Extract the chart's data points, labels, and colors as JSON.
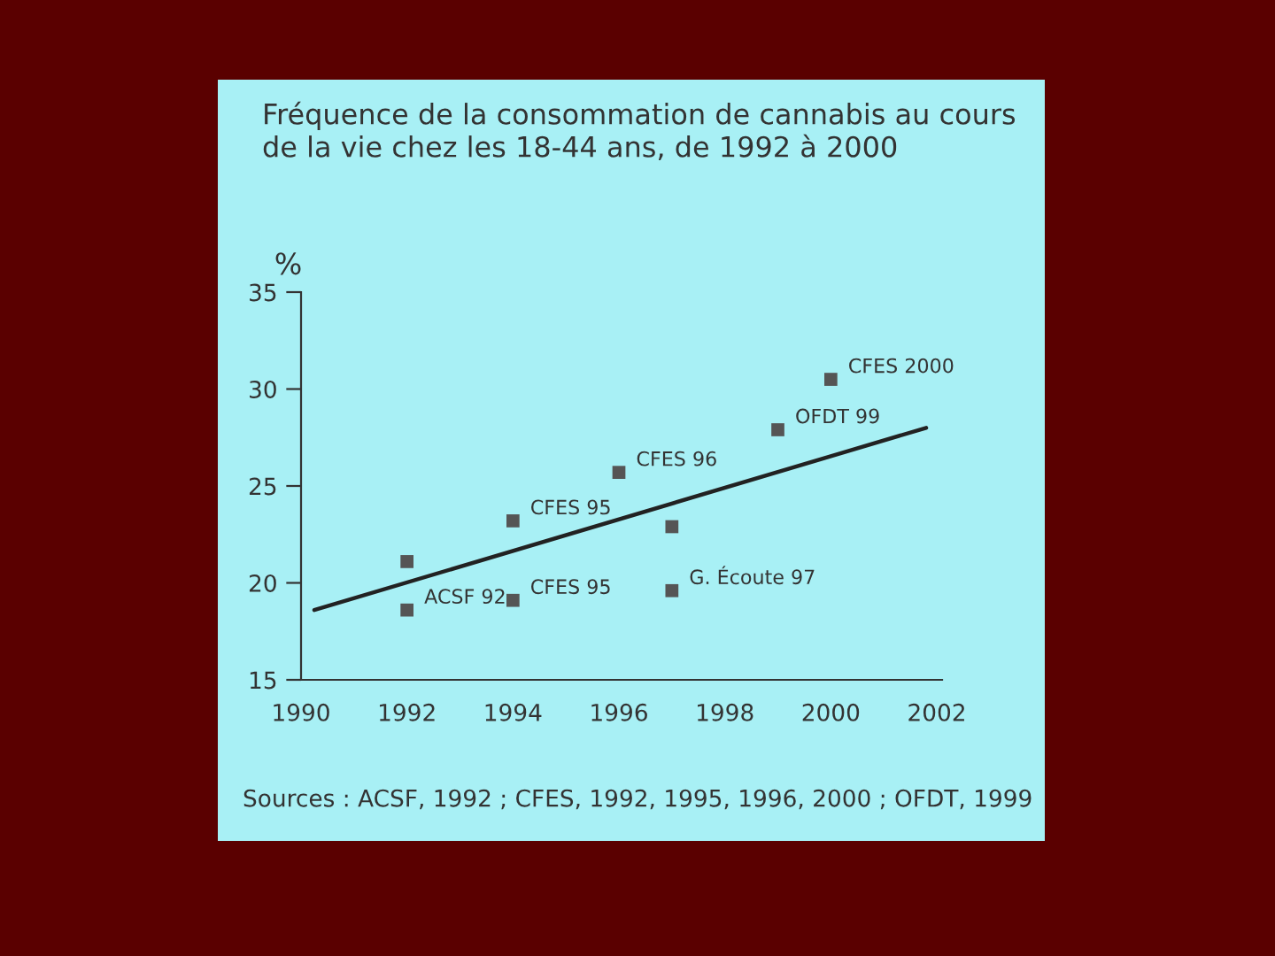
{
  "chart_data": {
    "type": "scatter",
    "title": "Fréquence de la consommation de cannabis au cours\nde la vie chez les 18-44 ans, de 1992 à 2000",
    "ylabel": "%",
    "series": [
      {
        "marker": "square",
        "color": "#555555",
        "x": [
          1992,
          1992,
          1994,
          1994,
          1996,
          1997,
          1997,
          1999,
          2000
        ],
        "values": [
          21.1,
          18.6,
          23.2,
          19.1,
          25.7,
          22.9,
          19.6,
          27.9,
          30.5
        ]
      },
      {
        "type": "line",
        "color": "#222222",
        "x": [
          1990.25,
          2001.8
        ],
        "values": [
          18.6,
          28.0
        ]
      }
    ],
    "xlim": [
      1990,
      2002.1
    ],
    "ylim": [
      15,
      35
    ],
    "xticks": [
      1990,
      1992,
      1994,
      1996,
      1998,
      2000,
      2002
    ],
    "yticks": [
      15,
      20,
      25,
      30,
      35
    ],
    "grid": false,
    "legend": false,
    "annotations": [
      {
        "text": "ACSF 92",
        "x": 1992,
        "y": 18.6
      },
      {
        "text": "CFES 95",
        "x": 1994,
        "y": 23.2
      },
      {
        "text": "CFES 95",
        "x": 1994,
        "y": 19.1
      },
      {
        "text": "CFES 96",
        "x": 1996,
        "y": 25.7
      },
      {
        "text": "G. Écoute 97",
        "x": 1997,
        "y": 19.6
      },
      {
        "text": "OFDT 99",
        "x": 1999,
        "y": 27.9
      },
      {
        "text": "CFES 2000",
        "x": 2000,
        "y": 30.5
      },
      "Sources : ACSF, 1992 ; CFES, 1992, 1995, 1996, 2000 ; OFDT, 1999"
    ]
  }
}
